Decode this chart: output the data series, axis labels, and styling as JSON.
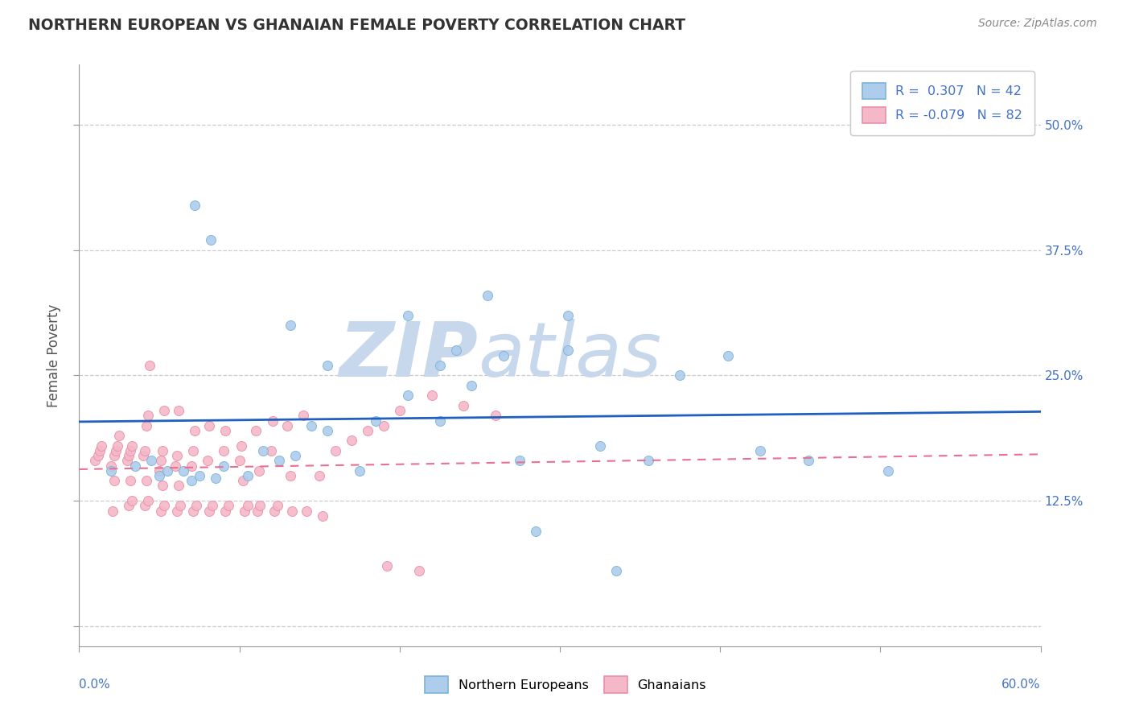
{
  "title": "NORTHERN EUROPEAN VS GHANAIAN FEMALE POVERTY CORRELATION CHART",
  "source": "Source: ZipAtlas.com",
  "ylabel": "Female Poverty",
  "xlim": [
    0.0,
    0.6
  ],
  "ylim": [
    -0.02,
    0.56
  ],
  "watermark_color": "#c8d8ec",
  "legend_blue_label": "R =  0.307   N = 42",
  "legend_pink_label": "R = -0.079   N = 82",
  "blue_color": "#7ab4d8",
  "blue_fill": "#aecceb",
  "pink_color": "#e890a8",
  "pink_fill": "#f4b8c8",
  "blue_line_color": "#2060c0",
  "pink_line_color": "#e87090",
  "blue_scatter_x": [
    0.02,
    0.035,
    0.045,
    0.05,
    0.055,
    0.065,
    0.07,
    0.075,
    0.085,
    0.09,
    0.105,
    0.115,
    0.125,
    0.135,
    0.145,
    0.155,
    0.175,
    0.185,
    0.205,
    0.225,
    0.245,
    0.255,
    0.265,
    0.305,
    0.325,
    0.355,
    0.375,
    0.405,
    0.425,
    0.455,
    0.072,
    0.082,
    0.132,
    0.205,
    0.235,
    0.275,
    0.225,
    0.155,
    0.305,
    0.505,
    0.285,
    0.335
  ],
  "blue_scatter_y": [
    0.155,
    0.16,
    0.165,
    0.15,
    0.155,
    0.155,
    0.145,
    0.15,
    0.148,
    0.16,
    0.15,
    0.175,
    0.165,
    0.17,
    0.2,
    0.195,
    0.155,
    0.205,
    0.23,
    0.205,
    0.24,
    0.33,
    0.27,
    0.275,
    0.18,
    0.165,
    0.25,
    0.27,
    0.175,
    0.165,
    0.42,
    0.385,
    0.3,
    0.31,
    0.275,
    0.165,
    0.26,
    0.26,
    0.31,
    0.155,
    0.095,
    0.055
  ],
  "pink_scatter_x": [
    0.01,
    0.012,
    0.013,
    0.014,
    0.02,
    0.022,
    0.023,
    0.024,
    0.025,
    0.03,
    0.031,
    0.032,
    0.033,
    0.04,
    0.041,
    0.042,
    0.043,
    0.05,
    0.051,
    0.052,
    0.053,
    0.06,
    0.061,
    0.062,
    0.07,
    0.071,
    0.072,
    0.08,
    0.081,
    0.09,
    0.091,
    0.1,
    0.101,
    0.11,
    0.12,
    0.121,
    0.13,
    0.14,
    0.15,
    0.16,
    0.17,
    0.18,
    0.19,
    0.2,
    0.22,
    0.24,
    0.26,
    0.102,
    0.112,
    0.132,
    0.022,
    0.032,
    0.042,
    0.052,
    0.062,
    0.021,
    0.031,
    0.033,
    0.041,
    0.043,
    0.051,
    0.053,
    0.061,
    0.063,
    0.071,
    0.073,
    0.081,
    0.083,
    0.091,
    0.093,
    0.103,
    0.105,
    0.111,
    0.113,
    0.122,
    0.124,
    0.133,
    0.142,
    0.152,
    0.044,
    0.192,
    0.212
  ],
  "pink_scatter_y": [
    0.165,
    0.17,
    0.175,
    0.18,
    0.16,
    0.17,
    0.175,
    0.18,
    0.19,
    0.165,
    0.17,
    0.175,
    0.18,
    0.17,
    0.175,
    0.2,
    0.21,
    0.155,
    0.165,
    0.175,
    0.215,
    0.16,
    0.17,
    0.215,
    0.16,
    0.175,
    0.195,
    0.165,
    0.2,
    0.175,
    0.195,
    0.165,
    0.18,
    0.195,
    0.175,
    0.205,
    0.2,
    0.21,
    0.15,
    0.175,
    0.185,
    0.195,
    0.2,
    0.215,
    0.23,
    0.22,
    0.21,
    0.145,
    0.155,
    0.15,
    0.145,
    0.145,
    0.145,
    0.14,
    0.14,
    0.115,
    0.12,
    0.125,
    0.12,
    0.125,
    0.115,
    0.12,
    0.115,
    0.12,
    0.115,
    0.12,
    0.115,
    0.12,
    0.115,
    0.12,
    0.115,
    0.12,
    0.115,
    0.12,
    0.115,
    0.12,
    0.115,
    0.115,
    0.11,
    0.26,
    0.06,
    0.055
  ]
}
